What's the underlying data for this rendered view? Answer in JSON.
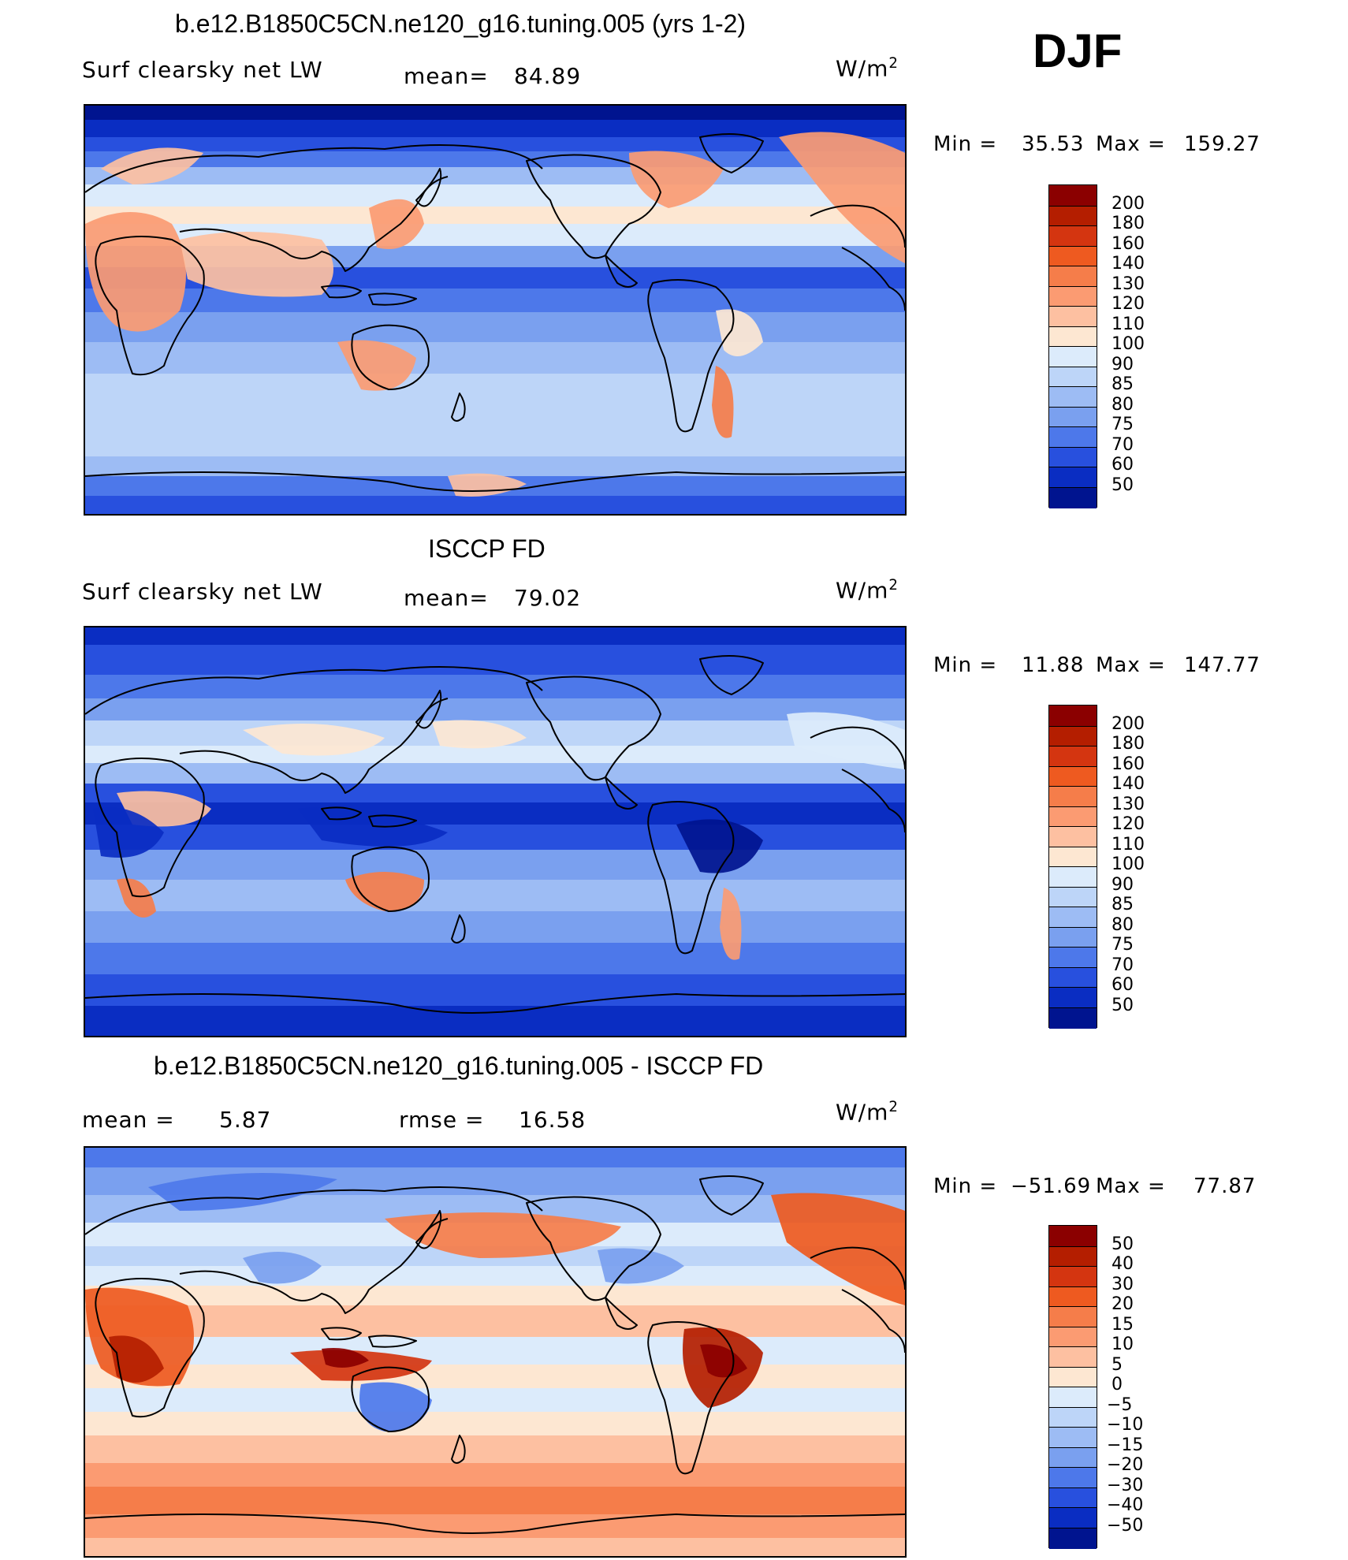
{
  "season": "DJF",
  "panels": [
    {
      "title": "b.e12.B1850C5CN.ne120_g16.tuning.005 (yrs 1-2)",
      "left_label": "Surf clearsky net LW",
      "stat_label": "mean=",
      "stat_value": "84.89",
      "units_base": "W/m",
      "units_sup": "2",
      "min_label": "Min =",
      "min_value": "35.53",
      "max_label": "Max =",
      "max_value": "159.27",
      "colorbar": {
        "labels": [
          "200",
          "180",
          "160",
          "140",
          "130",
          "120",
          "110",
          "100",
          "90",
          "85",
          "80",
          "75",
          "70",
          "60",
          "50"
        ],
        "colors": [
          "#8b0000",
          "#b41e00",
          "#d43510",
          "#ee5a20",
          "#f57d4a",
          "#fb9b72",
          "#fdc0a1",
          "#fde7d2",
          "#dcebfb",
          "#bdd5f8",
          "#9dbcf4",
          "#7aa0ef",
          "#4d78ea",
          "#2850de",
          "#0a2dc2",
          "#00148f"
        ]
      },
      "map_type": "model"
    },
    {
      "title": "ISCCP FD",
      "left_label": "Surf clearsky net LW",
      "stat_label": "mean=",
      "stat_value": "79.02",
      "units_base": "W/m",
      "units_sup": "2",
      "min_label": "Min =",
      "min_value": "11.88",
      "max_label": "Max =",
      "max_value": "147.77",
      "colorbar": {
        "labels": [
          "200",
          "180",
          "160",
          "140",
          "130",
          "120",
          "110",
          "100",
          "90",
          "85",
          "80",
          "75",
          "70",
          "60",
          "50"
        ],
        "colors": [
          "#8b0000",
          "#b41e00",
          "#d43510",
          "#ee5a20",
          "#f57d4a",
          "#fb9b72",
          "#fdc0a1",
          "#fde7d2",
          "#dcebfb",
          "#bdd5f8",
          "#9dbcf4",
          "#7aa0ef",
          "#4d78ea",
          "#2850de",
          "#0a2dc2",
          "#00148f"
        ]
      },
      "map_type": "obs"
    },
    {
      "title": "b.e12.B1850C5CN.ne120_g16.tuning.005 - ISCCP FD",
      "left_label": "mean =",
      "left_value": "5.87",
      "stat_label": "rmse =",
      "stat_value": "16.58",
      "units_base": "W/m",
      "units_sup": "2",
      "min_label": "Min =",
      "min_value": "−51.69",
      "max_label": "Max =",
      "max_value": "77.87",
      "colorbar": {
        "labels": [
          "50",
          "40",
          "30",
          "20",
          "15",
          "10",
          "5",
          "0",
          "−5",
          "−10",
          "−15",
          "−20",
          "−30",
          "−40",
          "−50"
        ],
        "colors": [
          "#8b0000",
          "#b41e00",
          "#d43510",
          "#ee5a20",
          "#f57d4a",
          "#fb9b72",
          "#fdc0a1",
          "#fde7d2",
          "#dcebfb",
          "#bdd5f8",
          "#9dbcf4",
          "#7aa0ef",
          "#4d78ea",
          "#2850de",
          "#0a2dc2",
          "#00148f"
        ]
      },
      "map_type": "diff"
    }
  ]
}
